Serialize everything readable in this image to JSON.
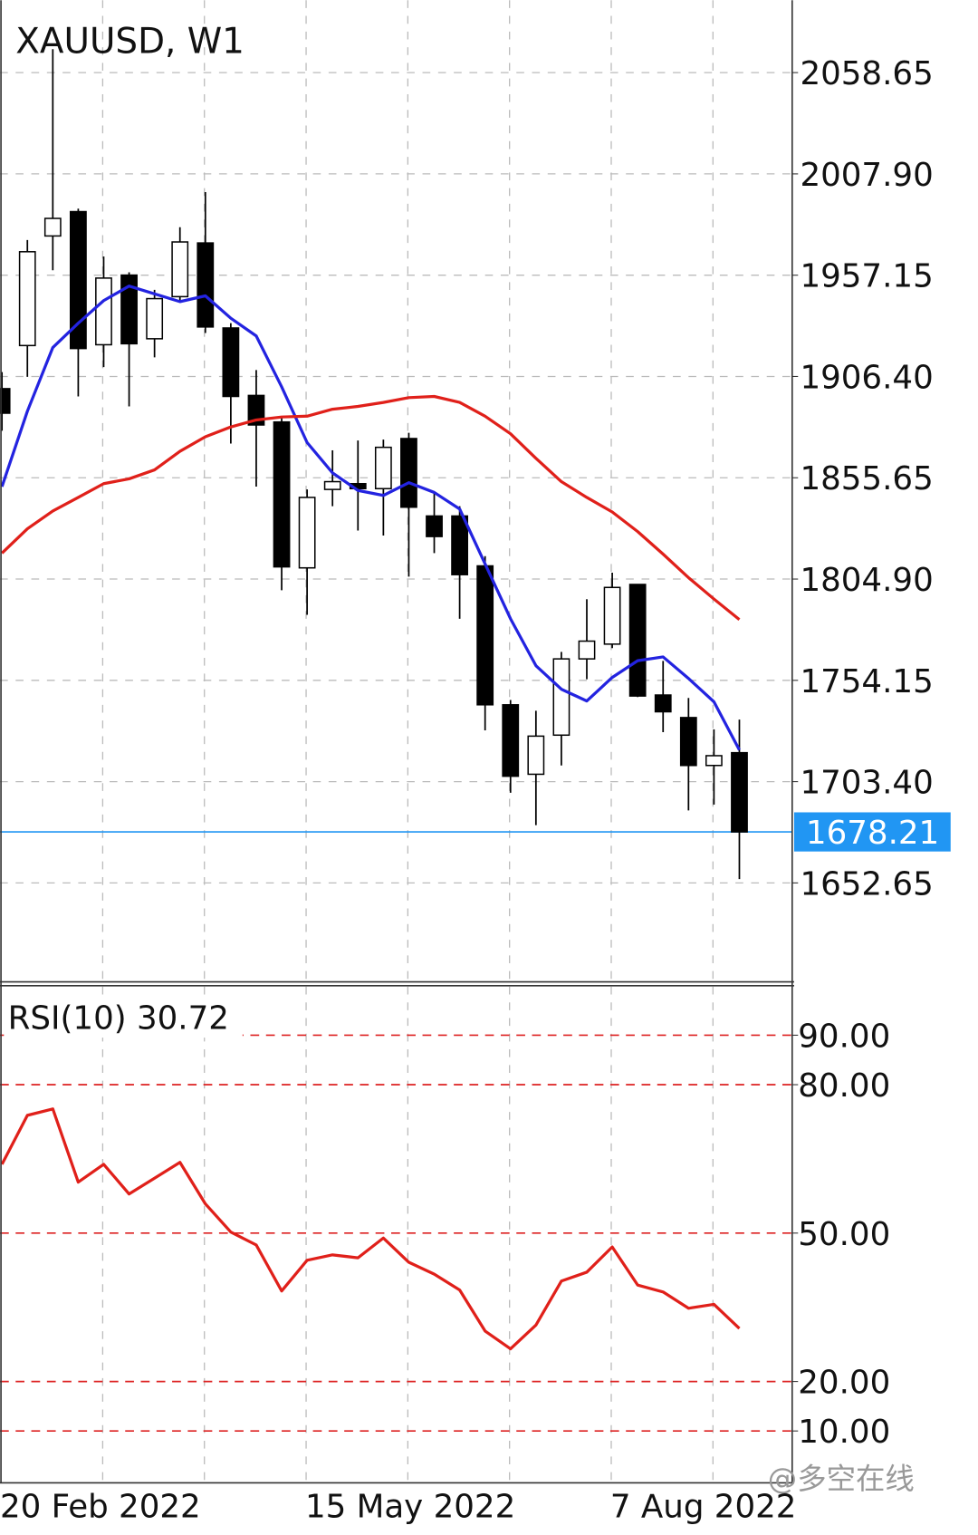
{
  "chart_data": [
    {
      "type": "candlestick",
      "title": "XAUUSD, W1",
      "open": [
        1900.3,
        1921.9,
        1976.8,
        1989.0,
        1922.3,
        1957.2,
        1925.3,
        1946.4,
        1973.3,
        1930.7,
        1896.9,
        1883.6,
        1810.5,
        1849.8,
        1852.7,
        1850.2,
        1875.3,
        1836.5,
        1836.5,
        1811.5,
        1741.9,
        1707.1,
        1726.7,
        1764.9,
        1772.3,
        1802.2,
        1746.8,
        1735.5,
        1711.5,
        1717.9
      ],
      "high": [
        1908.6,
        1974.8,
        2070.4,
        1990.5,
        1966.5,
        1958.6,
        1949.8,
        1981.2,
        1998.8,
        1933.1,
        1909.6,
        1885.6,
        1849.8,
        1869.4,
        1874.3,
        1874.8,
        1878.2,
        1848.3,
        1841.4,
        1816.4,
        1744.3,
        1738.9,
        1768.4,
        1794.8,
        1808.1,
        1802.2,
        1763.9,
        1745.3,
        1729.6,
        1734.5
      ],
      "low": [
        1879.2,
        1906.2,
        1959.6,
        1896.4,
        1911.1,
        1891.4,
        1916.0,
        1943.9,
        1928.2,
        1872.8,
        1851.2,
        1799.3,
        1787.0,
        1841.4,
        1829.2,
        1826.7,
        1806.1,
        1817.9,
        1785.0,
        1729.1,
        1697.8,
        1681.6,
        1711.5,
        1754.7,
        1770.3,
        1745.8,
        1728.2,
        1689.0,
        1691.9,
        1654.6
      ],
      "close": [
        1888.0,
        1968.9,
        1985.6,
        1920.4,
        1955.7,
        1922.8,
        1945.4,
        1973.8,
        1931.2,
        1896.4,
        1882.1,
        1811.0,
        1845.8,
        1853.7,
        1850.2,
        1870.9,
        1840.9,
        1826.2,
        1807.1,
        1741.9,
        1706.1,
        1726.2,
        1764.9,
        1773.8,
        1800.7,
        1746.3,
        1738.4,
        1711.5,
        1716.4,
        1678.21
      ],
      "lines": [
        {
          "color": "#2323e0",
          "values": [
            1851.2,
            1889.0,
            1920.9,
            1933.1,
            1944.4,
            1951.7,
            1947.8,
            1943.9,
            1946.8,
            1935.6,
            1926.7,
            1901.2,
            1873.3,
            1858.1,
            1849.3,
            1846.8,
            1853.2,
            1848.3,
            1840.0,
            1812.5,
            1785.0,
            1761.5,
            1749.7,
            1743.8,
            1755.6,
            1764.0,
            1765.9,
            1755.1,
            1743.4,
            1719.3
          ]
        },
        {
          "color": "#e0201a",
          "values": [
            1817.9,
            1830.1,
            1839.0,
            1845.8,
            1852.7,
            1855.1,
            1859.6,
            1868.9,
            1876.2,
            1881.1,
            1884.6,
            1886.1,
            1886.5,
            1890.0,
            1891.4,
            1893.4,
            1895.8,
            1896.4,
            1893.4,
            1886.5,
            1877.7,
            1865.4,
            1853.7,
            1845.8,
            1838.5,
            1828.7,
            1817.4,
            1805.6,
            1794.9,
            1784.6
          ]
        }
      ],
      "last_price": 1678.21,
      "last_price_color": "#2196f3",
      "ylim": [
        1603.1,
        2094.9
      ],
      "yticks": [
        2058.65,
        {
          "value": 2007.9,
          "label": "2007.90"
        },
        1957.15,
        {
          "value": 1906.4,
          "label": "1906.40"
        },
        1855.65,
        {
          "value": 1804.9,
          "label": "1804.90"
        },
        1754.15,
        {
          "value": 1703.4,
          "label": "1703.40"
        },
        1652.65
      ],
      "grid": true
    },
    {
      "type": "line",
      "title": "RSI(10) 30.72",
      "categories": [
        "20 Feb 2022",
        null,
        null,
        null,
        null,
        null,
        null,
        null,
        null,
        null,
        null,
        null,
        "15 May 2022",
        null,
        null,
        null,
        null,
        null,
        null,
        null,
        null,
        null,
        null,
        null,
        "7 Aug 2022",
        null,
        null,
        null,
        null,
        null
      ],
      "values": [
        63.9,
        73.8,
        75.1,
        60.3,
        63.9,
        57.9,
        61.1,
        64.3,
        55.9,
        50.2,
        47.6,
        38.3,
        44.5,
        45.6,
        45.0,
        49.0,
        44.1,
        41.7,
        38.5,
        30.2,
        26.6,
        31.4,
        40.3,
        42.1,
        47.2,
        39.5,
        38.1,
        34.8,
        35.6,
        30.72
      ],
      "color": "#e0201a",
      "ylim": [
        0,
        100
      ],
      "yticks": [
        {
          "value": 90,
          "label": "90.00"
        },
        {
          "value": 80,
          "label": "80.00"
        },
        {
          "value": 50,
          "label": "50.00"
        },
        {
          "value": 20,
          "label": "20.00"
        },
        {
          "value": 10,
          "label": "10.00"
        }
      ],
      "level_color": "#dd2222"
    }
  ],
  "watermark": "@多空在线"
}
